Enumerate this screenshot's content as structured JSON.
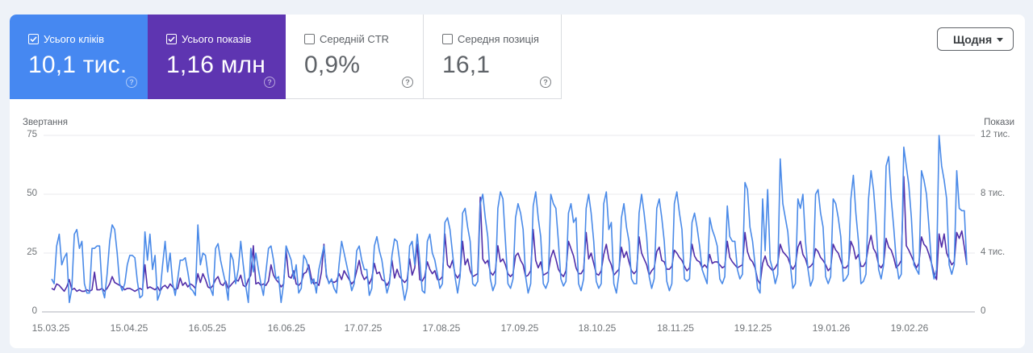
{
  "metrics": [
    {
      "label": "Усього кліків",
      "value": "10,1 тис.",
      "checked": true,
      "color": "#4688f1"
    },
    {
      "label": "Усього показів",
      "value": "1,16 млн",
      "checked": true,
      "color": "#5e35b1"
    },
    {
      "label": "Середній CTR",
      "value": "0,9%",
      "checked": false
    },
    {
      "label": "Середня позиція",
      "value": "16,1",
      "checked": false
    }
  ],
  "help_icon_text": "?",
  "granularity": {
    "label": "Щодня",
    "icon": "caret-down-icon"
  },
  "chart_data": {
    "type": "line",
    "title": "",
    "x_start": "15.03.25",
    "x_interval": "daily",
    "x_tick_labels": [
      "15.03.25",
      "15.04.25",
      "16.05.25",
      "16.06.25",
      "17.07.25",
      "17.08.25",
      "17.09.25",
      "18.10.25",
      "18.11.25",
      "19.12.25",
      "19.01.26",
      "19.02.26"
    ],
    "y_left": {
      "label": "Звертання",
      "range": [
        0,
        75
      ],
      "ticks": [
        "0",
        "25",
        "50",
        "75"
      ]
    },
    "y_right": {
      "label": "Покази",
      "range": [
        0,
        12
      ],
      "unit": "тис.",
      "ticks": [
        "0",
        "4 тис.",
        "8 тис.",
        "12 тис."
      ]
    },
    "grid": true,
    "legend": "none (metric tiles act as legend)",
    "series": [
      {
        "name": "Усього показів",
        "axis": "right",
        "unit": "тис.",
        "color": "#512da8",
        "values": [
          1.6,
          1.5,
          1.9,
          1.8,
          1.6,
          1.4,
          1.7,
          2.2,
          1.5,
          1.6,
          1.4,
          1.5,
          1.4,
          1.4,
          1.5,
          1.4,
          1.5,
          2.7,
          1.5,
          1.5,
          1.6,
          1.4,
          1.6,
          1.9,
          2.4,
          2.0,
          1.9,
          1.8,
          1.7,
          1.5,
          1.6,
          1.6,
          1.5,
          1.4,
          1.5,
          1.6,
          1.5,
          3.2,
          1.6,
          1.7,
          1.6,
          1.5,
          1.7,
          1.4,
          1.7,
          1.8,
          1.6,
          1.9,
          1.7,
          1.5,
          1.6,
          2.3,
          1.8,
          2.0,
          1.7,
          1.9,
          1.8,
          1.6,
          2.6,
          2.0,
          2.6,
          2.2,
          1.7,
          1.6,
          1.8,
          2.2,
          2.4,
          1.9,
          1.8,
          2.1,
          1.6,
          1.8,
          2.0,
          2.2,
          2.1,
          2.5,
          1.8,
          1.7,
          2.2,
          2.5,
          4.5,
          1.9,
          2.0,
          1.8,
          1.9,
          1.8,
          2.1,
          3.2,
          2.5,
          2.2,
          2.0,
          1.7,
          1.9,
          4.2,
          2.4,
          2.3,
          2.8,
          1.9,
          1.8,
          2.0,
          2.6,
          2.7,
          3.2,
          2.3,
          1.9,
          2.0,
          1.8,
          2.7,
          4.6,
          2.4,
          2.0,
          2.1,
          2.0,
          2.1,
          2.6,
          2.2,
          2.8,
          2.5,
          2.2,
          1.9,
          2.1,
          2.8,
          3.5,
          2.6,
          2.2,
          2.4,
          1.9,
          2.3,
          3.3,
          2.6,
          2.7,
          2.2,
          2.1,
          1.8,
          2.1,
          3.5,
          2.3,
          2.9,
          2.4,
          2.2,
          2.0,
          2.2,
          3.6,
          2.5,
          3.0,
          4.6,
          2.2,
          2.1,
          2.4,
          3.4,
          2.9,
          2.6,
          2.8,
          2.2,
          2.2,
          2.4,
          5.3,
          3.2,
          3.0,
          3.5,
          2.6,
          2.3,
          2.6,
          4.8,
          3.2,
          3.6,
          2.8,
          2.4,
          2.5,
          2.6,
          7.8,
          3.6,
          3.3,
          3.5,
          2.7,
          2.5,
          2.8,
          4.5,
          3.4,
          3.6,
          3.2,
          2.6,
          2.4,
          2.6,
          3.8,
          4.0,
          3.5,
          3.2,
          2.4,
          2.5,
          2.8,
          5.6,
          3.5,
          3.0,
          3.4,
          2.5,
          2.6,
          2.7,
          3.7,
          4.2,
          3.6,
          2.9,
          2.6,
          2.4,
          2.8,
          4.8,
          4.3,
          3.8,
          3.0,
          2.6,
          2.6,
          2.9,
          5.4,
          3.6,
          4.0,
          3.3,
          2.6,
          2.5,
          2.8,
          3.9,
          4.6,
          3.6,
          3.2,
          2.5,
          2.7,
          2.9,
          4.4,
          3.7,
          4.1,
          3.4,
          2.8,
          2.6,
          2.8,
          5.1,
          4.0,
          3.6,
          3.2,
          2.5,
          2.8,
          3.0,
          4.1,
          4.4,
          3.5,
          3.4,
          2.9,
          2.9,
          3.1,
          4.2,
          4.0,
          3.7,
          3.5,
          3.1,
          2.8,
          3.0,
          4.6,
          3.8,
          3.5,
          3.4,
          3.0,
          3.2,
          3.0,
          3.9,
          3.3,
          3.4,
          3.4,
          3.2,
          3.0,
          3.1,
          4.8,
          3.7,
          3.4,
          3.2,
          3.0,
          3.1,
          3.2,
          5.4,
          4.1,
          3.6,
          3.4,
          3.0,
          2.2,
          1.9,
          3.3,
          3.8,
          3.2,
          3.0,
          2.8,
          3.0,
          3.3,
          4.6,
          4.1,
          3.9,
          3.7,
          3.2,
          2.9,
          3.2,
          4.4,
          4.8,
          3.9,
          3.6,
          3.0,
          3.1,
          3.3,
          4.3,
          4.1,
          3.7,
          3.5,
          3.2,
          2.8,
          3.0,
          4.6,
          4.2,
          4.0,
          3.5,
          3.0,
          3.0,
          3.2,
          4.8,
          4.4,
          3.6,
          3.9,
          3.1,
          3.1,
          3.4,
          4.5,
          5.2,
          4.3,
          4.0,
          3.2,
          3.0,
          3.3,
          5.0,
          4.4,
          4.2,
          3.7,
          3.0,
          3.2,
          3.5,
          9.2,
          4.5,
          4.2,
          3.8,
          3.4,
          3.0,
          3.3,
          5.1,
          4.6,
          4.4,
          3.9,
          3.3,
          2.6,
          2.2,
          5.3,
          4.4,
          5.3,
          4.0,
          3.6,
          3.2,
          3.4,
          5.4,
          5.0,
          5.5,
          4.4,
          3.2
        ]
      },
      {
        "name": "Усього кліків",
        "axis": "left",
        "color": "#4a8ae8",
        "values": [
          14,
          12,
          28,
          33,
          20,
          23,
          25,
          4,
          10,
          33,
          35,
          27,
          30,
          12,
          8,
          8,
          27,
          27,
          28,
          28,
          10,
          6,
          16,
          30,
          37,
          35,
          25,
          12,
          9,
          12,
          20,
          24,
          24,
          23,
          13,
          6,
          7,
          34,
          22,
          33,
          18,
          24,
          5,
          8,
          20,
          30,
          17,
          25,
          12,
          7,
          14,
          22,
          22,
          23,
          17,
          10,
          9,
          7,
          37,
          20,
          25,
          24,
          16,
          10,
          7,
          27,
          29,
          22,
          17,
          12,
          5,
          25,
          22,
          12,
          18,
          30,
          20,
          11,
          4,
          27,
          17,
          25,
          18,
          12,
          7,
          17,
          27,
          28,
          22,
          14,
          15,
          4,
          12,
          28,
          25,
          22,
          14,
          20,
          8,
          10,
          24,
          22,
          18,
          12,
          14,
          8,
          18,
          23,
          28,
          16,
          12,
          14,
          10,
          8,
          20,
          30,
          25,
          20,
          15,
          9,
          12,
          26,
          28,
          22,
          18,
          18,
          7,
          10,
          28,
          32,
          26,
          22,
          14,
          8,
          12,
          24,
          31,
          30,
          22,
          12,
          5,
          10,
          28,
          30,
          20,
          33,
          22,
          9,
          8,
          30,
          33,
          25,
          22,
          16,
          10,
          12,
          38,
          40,
          35,
          25,
          15,
          8,
          15,
          42,
          44,
          36,
          30,
          12,
          11,
          13,
          46,
          50,
          40,
          32,
          14,
          9,
          12,
          44,
          51,
          48,
          30,
          12,
          10,
          14,
          40,
          46,
          42,
          35,
          15,
          8,
          12,
          45,
          51,
          40,
          32,
          12,
          10,
          13,
          50,
          46,
          44,
          30,
          14,
          11,
          13,
          42,
          46,
          38,
          40,
          12,
          9,
          14,
          44,
          50,
          42,
          30,
          13,
          10,
          12,
          46,
          51,
          35,
          38,
          12,
          8,
          16,
          40,
          46,
          36,
          30,
          14,
          12,
          12,
          42,
          50,
          42,
          32,
          15,
          10,
          14,
          44,
          48,
          40,
          30,
          13,
          9,
          12,
          46,
          51,
          42,
          35,
          14,
          13,
          14,
          38,
          42,
          36,
          28,
          18,
          15,
          12,
          40,
          35,
          32,
          28,
          14,
          12,
          15,
          45,
          32,
          30,
          30,
          18,
          14,
          16,
          55,
          52,
          36,
          30,
          20,
          10,
          8,
          48,
          26,
          52,
          22,
          18,
          12,
          16,
          65,
          46,
          40,
          34,
          20,
          10,
          12,
          48,
          44,
          50,
          30,
          18,
          11,
          14,
          50,
          52,
          42,
          36,
          15,
          12,
          15,
          48,
          46,
          40,
          32,
          13,
          14,
          16,
          48,
          58,
          42,
          30,
          12,
          13,
          16,
          48,
          60,
          52,
          38,
          18,
          14,
          20,
          62,
          66,
          48,
          36,
          22,
          14,
          16,
          70,
          62,
          54,
          40,
          20,
          18,
          16,
          60,
          56,
          50,
          36,
          20,
          14,
          18,
          75,
          62,
          56,
          48,
          20,
          16,
          20,
          60,
          44,
          43,
          43,
          20
        ]
      }
    ]
  }
}
